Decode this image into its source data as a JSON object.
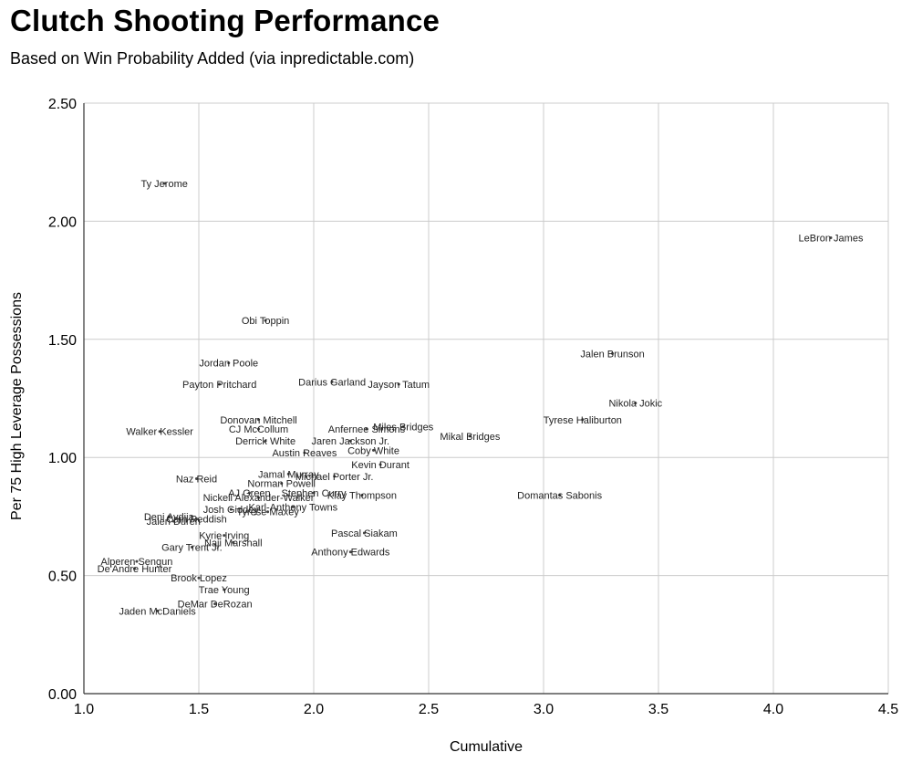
{
  "chart_data": {
    "type": "scatter",
    "title": "Clutch Shooting Performance",
    "subtitle": "Based on Win Probability Added (via inpredictable.com)",
    "xlabel": "Cumulative",
    "ylabel": "Per 75 High Leverage Possessions",
    "xlim": [
      1.0,
      4.5
    ],
    "ylim": [
      0.0,
      2.5
    ],
    "xticks": [
      "1.0",
      "1.5",
      "2.0",
      "2.5",
      "3.0",
      "3.5",
      "4.0",
      "4.5"
    ],
    "yticks": [
      "0.00",
      "0.50",
      "1.00",
      "1.50",
      "2.00",
      "2.50"
    ],
    "grid": true,
    "points": [
      {
        "label": "Ty Jerome",
        "x": 1.35,
        "y": 2.16
      },
      {
        "label": "LeBron James",
        "x": 4.25,
        "y": 1.93
      },
      {
        "label": "Obi Toppin",
        "x": 1.79,
        "y": 1.58
      },
      {
        "label": "Jalen Brunson",
        "x": 3.3,
        "y": 1.44
      },
      {
        "label": "Jordan Poole",
        "x": 1.63,
        "y": 1.4
      },
      {
        "label": "Darius Garland",
        "x": 2.08,
        "y": 1.32
      },
      {
        "label": "Jayson Tatum",
        "x": 2.37,
        "y": 1.31
      },
      {
        "label": "Payton Pritchard",
        "x": 1.59,
        "y": 1.31
      },
      {
        "label": "Nikola Jokic",
        "x": 3.4,
        "y": 1.23
      },
      {
        "label": "Tyrese Haliburton",
        "x": 3.17,
        "y": 1.16
      },
      {
        "label": "Donovan Mitchell",
        "x": 1.76,
        "y": 1.16
      },
      {
        "label": "Walker Kessler",
        "x": 1.33,
        "y": 1.11
      },
      {
        "label": "CJ McCollum",
        "x": 1.76,
        "y": 1.12
      },
      {
        "label": "Anfernee Simons",
        "x": 2.23,
        "y": 1.12
      },
      {
        "label": "Miles Bridges",
        "x": 2.39,
        "y": 1.13
      },
      {
        "label": "Mikal Bridges",
        "x": 2.68,
        "y": 1.09
      },
      {
        "label": "Derrick White",
        "x": 1.79,
        "y": 1.07
      },
      {
        "label": "Jaren Jackson Jr.",
        "x": 2.16,
        "y": 1.07
      },
      {
        "label": "Austin Reaves",
        "x": 1.96,
        "y": 1.02
      },
      {
        "label": "Coby White",
        "x": 2.26,
        "y": 1.03
      },
      {
        "label": "Kevin Durant",
        "x": 2.29,
        "y": 0.97
      },
      {
        "label": "Jamal Murray",
        "x": 1.89,
        "y": 0.93
      },
      {
        "label": "Michael Porter Jr.",
        "x": 2.09,
        "y": 0.92
      },
      {
        "label": "Naz Reid",
        "x": 1.49,
        "y": 0.91
      },
      {
        "label": "Norman Powell",
        "x": 1.86,
        "y": 0.89
      },
      {
        "label": "AJ Green",
        "x": 1.72,
        "y": 0.85
      },
      {
        "label": "Stephen Curry",
        "x": 2.0,
        "y": 0.85
      },
      {
        "label": "Klay Thompson",
        "x": 2.21,
        "y": 0.84
      },
      {
        "label": "Domantas Sabonis",
        "x": 3.07,
        "y": 0.84
      },
      {
        "label": "Nickeil Alexander-Walker",
        "x": 1.76,
        "y": 0.83
      },
      {
        "label": "Josh Giddey",
        "x": 1.64,
        "y": 0.78
      },
      {
        "label": "Karl-Anthony Towns",
        "x": 1.91,
        "y": 0.79
      },
      {
        "label": "Tyrese Maxey",
        "x": 1.8,
        "y": 0.77
      },
      {
        "label": "Deni Avdija",
        "x": 1.37,
        "y": 0.75
      },
      {
        "label": "Cam Reddish",
        "x": 1.49,
        "y": 0.74
      },
      {
        "label": "Jalen Duren",
        "x": 1.39,
        "y": 0.73
      },
      {
        "label": "Pascal Siakam",
        "x": 2.22,
        "y": 0.68
      },
      {
        "label": "Kyrie Irving",
        "x": 1.61,
        "y": 0.67
      },
      {
        "label": "Naji Marshall",
        "x": 1.65,
        "y": 0.64
      },
      {
        "label": "Gary Trent Jr.",
        "x": 1.47,
        "y": 0.62
      },
      {
        "label": "Anthony Edwards",
        "x": 2.16,
        "y": 0.6
      },
      {
        "label": "Alperen Sengun",
        "x": 1.23,
        "y": 0.56
      },
      {
        "label": "De'Andre Hunter",
        "x": 1.22,
        "y": 0.53
      },
      {
        "label": "Brook Lopez",
        "x": 1.5,
        "y": 0.49
      },
      {
        "label": "Trae Young",
        "x": 1.61,
        "y": 0.44
      },
      {
        "label": "DeMar DeRozan",
        "x": 1.57,
        "y": 0.38
      },
      {
        "label": "Jaden McDaniels",
        "x": 1.32,
        "y": 0.35
      }
    ]
  }
}
